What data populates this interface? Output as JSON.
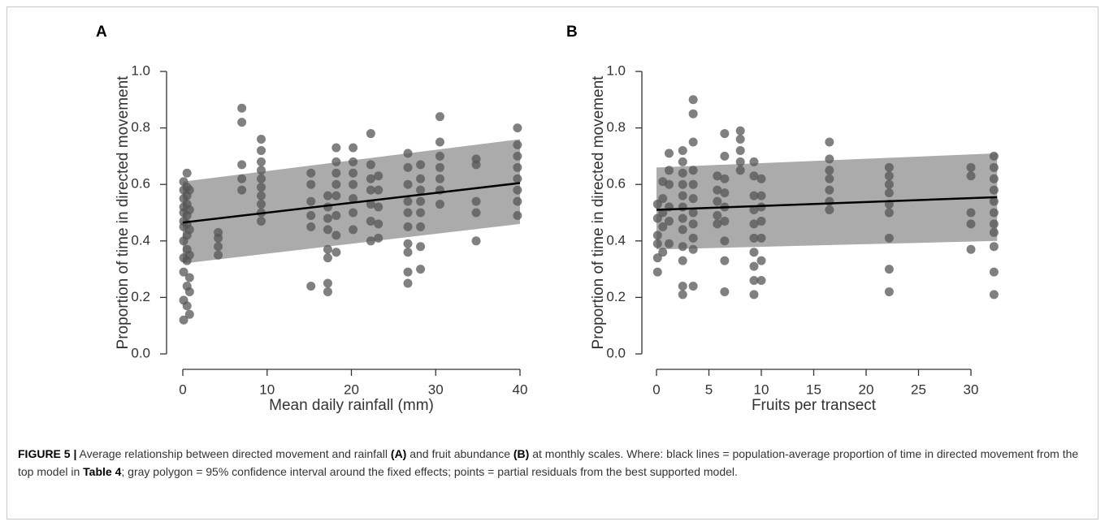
{
  "chart_data": [
    {
      "type": "scatter",
      "panel": "A",
      "ylabel": "Proportion of time in directed movement",
      "xlabel": "Mean daily rainfall (mm)",
      "xlim": [
        0,
        40
      ],
      "xticks": [
        0,
        10,
        20,
        30,
        40
      ],
      "ylim": [
        0,
        1
      ],
      "yticks": [
        {
          "value": 0,
          "label": "0.0"
        },
        {
          "value": 0.2,
          "label": "0.2"
        },
        {
          "value": 0.4,
          "label": "0.4"
        },
        {
          "value": 0.6,
          "label": "0.6"
        },
        {
          "value": 0.8,
          "label": "0.8"
        },
        {
          "value": 1,
          "label": "1.0"
        }
      ],
      "point_color": "#555555",
      "band_color": "#ababab",
      "line_color": "#000000",
      "band": {
        "x": [
          0,
          40
        ],
        "lower": [
          0.32,
          0.46
        ],
        "upper": [
          0.61,
          0.76
        ]
      },
      "fit": {
        "x": [
          0,
          40
        ],
        "values": [
          0.465,
          0.605
        ]
      },
      "x": [
        0.1,
        0.1,
        0.1,
        0.1,
        0.1,
        0.1,
        0.1,
        0.1,
        0.1,
        0.1,
        0.1,
        0.1,
        0.5,
        0.5,
        0.5,
        0.5,
        0.5,
        0.5,
        0.5,
        0.5,
        0.5,
        0.5,
        0.5,
        0.8,
        0.8,
        0.8,
        0.8,
        0.8,
        0.8,
        0.8,
        4.2,
        4.2,
        4.2,
        4.2,
        7,
        7,
        7,
        7,
        7,
        9.3,
        9.3,
        9.3,
        9.3,
        9.3,
        9.3,
        9.3,
        9.3,
        9.3,
        9.3,
        15.2,
        15.2,
        15.2,
        15.2,
        15.2,
        15.2,
        17.2,
        17.2,
        17.2,
        17.2,
        17.2,
        17.2,
        17.2,
        17.2,
        18.2,
        18.2,
        18.2,
        18.2,
        18.2,
        18.2,
        18.2,
        18.2,
        20.2,
        20.2,
        20.2,
        20.2,
        20.2,
        20.2,
        20.2,
        22.3,
        22.3,
        22.3,
        22.3,
        22.3,
        22.3,
        22.3,
        23.2,
        23.2,
        23.2,
        23.2,
        23.2,
        26.7,
        26.7,
        26.7,
        26.7,
        26.7,
        26.7,
        26.7,
        26.7,
        26.7,
        26.7,
        28.2,
        28.2,
        28.2,
        28.2,
        28.2,
        28.2,
        28.2,
        28.2,
        30.5,
        30.5,
        30.5,
        30.5,
        30.5,
        30.5,
        30.5,
        34.8,
        34.8,
        34.8,
        34.8,
        34.8,
        39.7,
        39.7,
        39.7,
        39.7,
        39.7,
        39.7,
        39.7,
        39.7
      ],
      "values": [
        0.12,
        0.19,
        0.29,
        0.34,
        0.4,
        0.45,
        0.47,
        0.5,
        0.52,
        0.55,
        0.58,
        0.61,
        0.17,
        0.24,
        0.33,
        0.37,
        0.42,
        0.46,
        0.49,
        0.53,
        0.56,
        0.59,
        0.64,
        0.14,
        0.22,
        0.27,
        0.35,
        0.44,
        0.51,
        0.58,
        0.35,
        0.38,
        0.41,
        0.43,
        0.58,
        0.62,
        0.67,
        0.82,
        0.87,
        0.47,
        0.5,
        0.53,
        0.56,
        0.59,
        0.62,
        0.65,
        0.68,
        0.72,
        0.76,
        0.24,
        0.45,
        0.49,
        0.54,
        0.6,
        0.64,
        0.22,
        0.25,
        0.34,
        0.37,
        0.44,
        0.48,
        0.52,
        0.56,
        0.36,
        0.42,
        0.49,
        0.56,
        0.6,
        0.64,
        0.68,
        0.73,
        0.44,
        0.5,
        0.55,
        0.6,
        0.64,
        0.68,
        0.73,
        0.4,
        0.47,
        0.53,
        0.58,
        0.62,
        0.67,
        0.78,
        0.41,
        0.46,
        0.52,
        0.58,
        0.63,
        0.25,
        0.29,
        0.36,
        0.39,
        0.45,
        0.5,
        0.54,
        0.6,
        0.66,
        0.71,
        0.3,
        0.38,
        0.45,
        0.5,
        0.54,
        0.58,
        0.62,
        0.67,
        0.53,
        0.58,
        0.62,
        0.66,
        0.7,
        0.75,
        0.84,
        0.4,
        0.5,
        0.54,
        0.67,
        0.69,
        0.49,
        0.54,
        0.58,
        0.62,
        0.66,
        0.7,
        0.74,
        0.8
      ]
    },
    {
      "type": "scatter",
      "panel": "B",
      "ylabel": "Proportion of time in directed movement",
      "xlabel": "Fruits per transect",
      "xlim": [
        0,
        32.5
      ],
      "xticks": [
        0,
        5,
        10,
        15,
        20,
        25,
        30
      ],
      "ylim": [
        0,
        1
      ],
      "yticks": [
        {
          "value": 0,
          "label": "0.0"
        },
        {
          "value": 0.2,
          "label": "0.2"
        },
        {
          "value": 0.4,
          "label": "0.4"
        },
        {
          "value": 0.6,
          "label": "0.6"
        },
        {
          "value": 0.8,
          "label": "0.8"
        },
        {
          "value": 1,
          "label": "1.0"
        }
      ],
      "point_color": "#555555",
      "band_color": "#ababab",
      "line_color": "#000000",
      "band": {
        "x": [
          0,
          32.5
        ],
        "lower": [
          0.37,
          0.4
        ],
        "upper": [
          0.66,
          0.71
        ]
      },
      "fit": {
        "x": [
          0,
          32.5
        ],
        "values": [
          0.51,
          0.555
        ]
      },
      "x": [
        0.1,
        0.1,
        0.1,
        0.1,
        0.1,
        0.1,
        0.6,
        0.6,
        0.6,
        0.6,
        0.6,
        1.2,
        1.2,
        1.2,
        1.2,
        1.2,
        1.2,
        2.5,
        2.5,
        2.5,
        2.5,
        2.5,
        2.5,
        2.5,
        2.5,
        2.5,
        2.5,
        2.5,
        2.5,
        3.5,
        3.5,
        3.5,
        3.5,
        3.5,
        3.5,
        3.5,
        3.5,
        3.5,
        3.5,
        3.5,
        5.8,
        5.8,
        5.8,
        5.8,
        5.8,
        6.5,
        6.5,
        6.5,
        6.5,
        6.5,
        6.5,
        6.5,
        6.5,
        6.5,
        8,
        8,
        8,
        8,
        8,
        9.3,
        9.3,
        9.3,
        9.3,
        9.3,
        9.3,
        9.3,
        9.3,
        9.3,
        9.3,
        10,
        10,
        10,
        10,
        10,
        10,
        10,
        16.5,
        16.5,
        16.5,
        16.5,
        16.5,
        16.5,
        16.5,
        22.2,
        22.2,
        22.2,
        22.2,
        22.2,
        22.2,
        22.2,
        22.2,
        22.2,
        30,
        30,
        30,
        30,
        30,
        32.2,
        32.2,
        32.2,
        32.2,
        32.2,
        32.2,
        32.2,
        32.2,
        32.2,
        32.2,
        32.2
      ],
      "values": [
        0.29,
        0.34,
        0.39,
        0.42,
        0.48,
        0.53,
        0.36,
        0.45,
        0.5,
        0.55,
        0.61,
        0.39,
        0.47,
        0.52,
        0.6,
        0.65,
        0.71,
        0.21,
        0.24,
        0.33,
        0.38,
        0.44,
        0.48,
        0.52,
        0.56,
        0.6,
        0.64,
        0.68,
        0.72,
        0.24,
        0.37,
        0.41,
        0.46,
        0.5,
        0.55,
        0.6,
        0.65,
        0.75,
        0.85,
        0.9,
        0.46,
        0.49,
        0.54,
        0.58,
        0.63,
        0.22,
        0.33,
        0.4,
        0.47,
        0.52,
        0.57,
        0.62,
        0.7,
        0.78,
        0.65,
        0.68,
        0.72,
        0.76,
        0.79,
        0.21,
        0.26,
        0.31,
        0.36,
        0.41,
        0.46,
        0.51,
        0.56,
        0.63,
        0.68,
        0.26,
        0.33,
        0.41,
        0.47,
        0.52,
        0.56,
        0.62,
        0.51,
        0.54,
        0.58,
        0.62,
        0.65,
        0.69,
        0.75,
        0.22,
        0.3,
        0.41,
        0.5,
        0.53,
        0.57,
        0.6,
        0.63,
        0.66,
        0.37,
        0.46,
        0.5,
        0.63,
        0.66,
        0.21,
        0.29,
        0.38,
        0.43,
        0.46,
        0.5,
        0.54,
        0.58,
        0.62,
        0.66,
        0.7
      ]
    }
  ],
  "caption": [
    {
      "text": "FIGURE 5 |",
      "bold": true
    },
    {
      "text": " Average relationship between directed movement and rainfall ",
      "bold": false
    },
    {
      "text": "(A)",
      "bold": true
    },
    {
      "text": " and fruit abundance ",
      "bold": false
    },
    {
      "text": "(B)",
      "bold": true
    },
    {
      "text": " at monthly scales. Where: black lines = population-average proportion of time in directed movement from the top model in ",
      "bold": false
    },
    {
      "text": "Table 4",
      "bold": true
    },
    {
      "text": "; gray polygon = 95% confidence interval around the fixed effects; points = partial residuals from the best supported model.",
      "bold": false
    }
  ]
}
